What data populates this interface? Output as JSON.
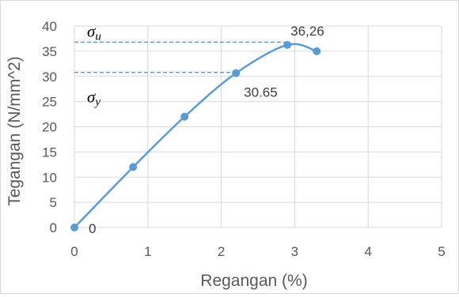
{
  "chart_data": {
    "type": "scatter",
    "title": "",
    "xlabel": "Regangan (%)",
    "ylabel": "Tegangan (N/mm^2)",
    "xlim": [
      0,
      5
    ],
    "ylim": [
      0,
      40
    ],
    "x_ticks": [
      "0",
      "1",
      "2",
      "3",
      "4",
      "5"
    ],
    "y_ticks": [
      "0",
      "5",
      "10",
      "15",
      "20",
      "25",
      "30",
      "35",
      "40"
    ],
    "grid": true,
    "legend": "none",
    "smooth_line": true,
    "series": [
      {
        "x": [
          0,
          0.8,
          1.5,
          2.2,
          2.9,
          3.3
        ],
        "y": [
          0,
          12,
          22,
          30.65,
          36.26,
          35
        ],
        "color": "#5b9bd5"
      }
    ],
    "data_labels": [
      {
        "text": "0",
        "x": 0,
        "y": 0
      },
      {
        "text": "30.65",
        "x": 2.2,
        "y": 30.65
      },
      {
        "text": "36,26",
        "x": 2.9,
        "y": 36.26
      }
    ],
    "reference_lines": [
      {
        "y": 36.8,
        "x_to": 2.9,
        "symbol": "σ",
        "subscript": "u"
      },
      {
        "y": 30.8,
        "x_to": 2.2,
        "symbol": "σ",
        "subscript": "y"
      }
    ],
    "colors": {
      "series": "#5b9bd5",
      "grid": "#d9d9d9",
      "text": "#595959"
    }
  }
}
